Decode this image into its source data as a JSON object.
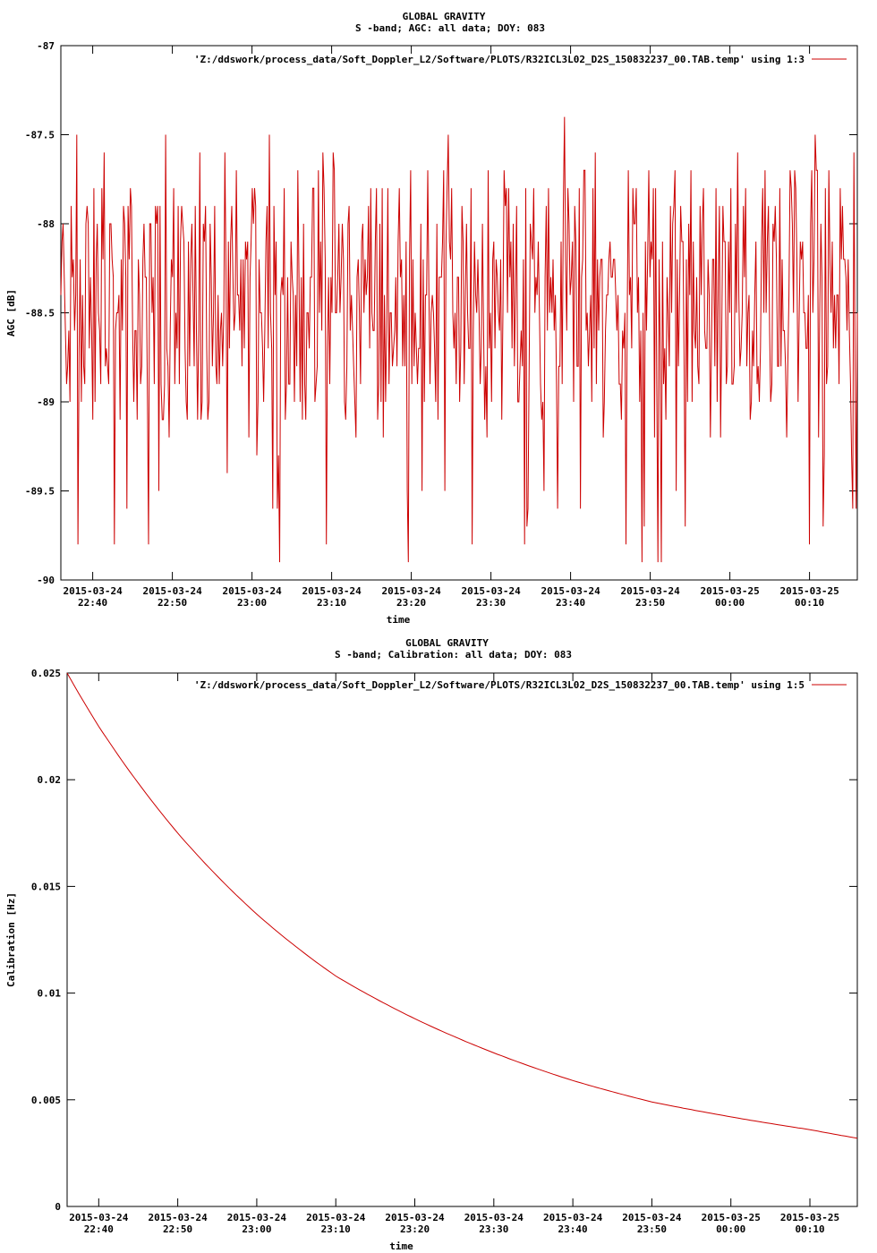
{
  "chart_data": [
    {
      "type": "line",
      "title": "GLOBAL GRAVITY",
      "subtitle": "S -band; AGC: all data; DOY: 083",
      "xlabel": "time",
      "ylabel": "AGC [dB]",
      "ylim": [
        -90,
        -87
      ],
      "yticks": [
        "-87",
        "-87.5",
        "-88",
        "-88.5",
        "-89",
        "-89.5",
        "-90"
      ],
      "xticks": [
        [
          "2015-03-24",
          "22:40"
        ],
        [
          "2015-03-24",
          "22:50"
        ],
        [
          "2015-03-24",
          "23:00"
        ],
        [
          "2015-03-24",
          "23:10"
        ],
        [
          "2015-03-24",
          "23:20"
        ],
        [
          "2015-03-24",
          "23:30"
        ],
        [
          "2015-03-24",
          "23:40"
        ],
        [
          "2015-03-24",
          "23:50"
        ],
        [
          "2015-03-25",
          "00:00"
        ],
        [
          "2015-03-25",
          "00:10"
        ]
      ],
      "xlim": [
        "2015-03-24 22:36",
        "2015-03-25 00:16"
      ],
      "legend_position": "top-right",
      "series": [
        {
          "name": "'Z:/ddswork/process_data/Soft_Doppler_L2/Software/PLOTS/R32ICL3L02_D2S_150832237_00.TAB.temp' using 1:3",
          "color": "#cc0000",
          "description_values": "noisy signal fluctuating roughly between -89.9 and -87.4 dB, mostly between -89 and -87.8"
        }
      ],
      "noise_profile": {
        "mean": -88.45,
        "min": -89.9,
        "max": -87.4,
        "sample_count": 700
      }
    },
    {
      "type": "line",
      "title": "GLOBAL GRAVITY",
      "subtitle": "S -band; Calibration: all data; DOY: 083",
      "xlabel": "time",
      "ylabel": "Calibration [Hz]",
      "ylim": [
        0,
        0.025
      ],
      "yticks": [
        "0.025",
        "0.02",
        "0.015",
        "0.01",
        "0.005",
        "0"
      ],
      "xticks": [
        [
          "2015-03-24",
          "22:40"
        ],
        [
          "2015-03-24",
          "22:50"
        ],
        [
          "2015-03-24",
          "23:00"
        ],
        [
          "2015-03-24",
          "23:10"
        ],
        [
          "2015-03-24",
          "23:20"
        ],
        [
          "2015-03-24",
          "23:30"
        ],
        [
          "2015-03-24",
          "23:40"
        ],
        [
          "2015-03-24",
          "23:50"
        ],
        [
          "2015-03-25",
          "00:00"
        ],
        [
          "2015-03-25",
          "00:10"
        ]
      ],
      "xlim": [
        "2015-03-24 22:36",
        "2015-03-25 00:16"
      ],
      "legend_position": "top-right",
      "series": [
        {
          "name": "'Z:/ddswork/process_data/Soft_Doppler_L2/Software/PLOTS/R32ICL3L02_D2S_150832237_00.TAB.temp' using 1:5",
          "color": "#cc0000",
          "x": [
            "22:36",
            "22:40",
            "22:50",
            "23:00",
            "23:10",
            "23:20",
            "23:30",
            "23:40",
            "23:50",
            "00:00",
            "00:10",
            "00:16"
          ],
          "values": [
            0.025,
            0.0225,
            0.0175,
            0.0137,
            0.0108,
            0.0088,
            0.0072,
            0.0059,
            0.0049,
            0.0042,
            0.0036,
            0.0032
          ]
        }
      ]
    }
  ]
}
